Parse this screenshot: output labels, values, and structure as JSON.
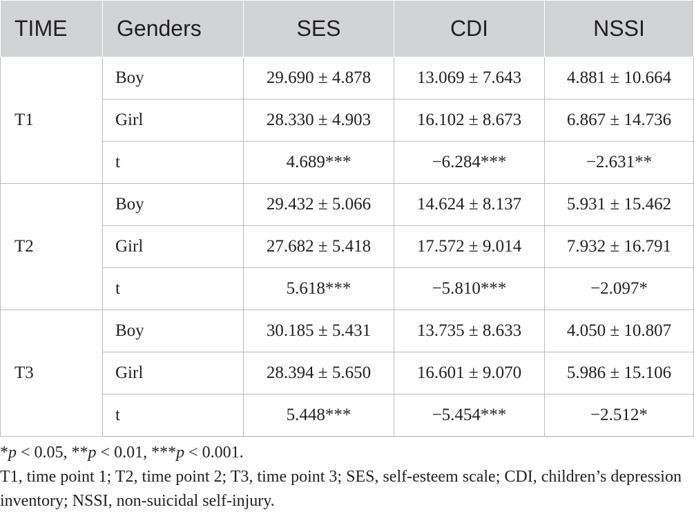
{
  "table": {
    "headers": [
      "TIME",
      "Genders",
      "SES",
      "CDI",
      "NSSI"
    ],
    "groups": [
      {
        "time": "T1",
        "rows": [
          {
            "gender": "Boy",
            "ses": "29.690 ± 4.878",
            "cdi": "13.069 ± 7.643",
            "nssi": "4.881 ± 10.664"
          },
          {
            "gender": "Girl",
            "ses": "28.330 ± 4.903",
            "cdi": "16.102 ± 8.673",
            "nssi": "6.867 ± 14.736"
          },
          {
            "gender": "t",
            "ses": "4.689***",
            "cdi": "−6.284***",
            "nssi": "−2.631**"
          }
        ]
      },
      {
        "time": "T2",
        "rows": [
          {
            "gender": "Boy",
            "ses": "29.432 ± 5.066",
            "cdi": "14.624 ± 8.137",
            "nssi": "5.931 ± 15.462"
          },
          {
            "gender": "Girl",
            "ses": "27.682 ± 5.418",
            "cdi": "17.572 ± 9.014",
            "nssi": "7.932 ± 16.791"
          },
          {
            "gender": "t",
            "ses": "5.618***",
            "cdi": "−5.810***",
            "nssi": "−2.097*"
          }
        ]
      },
      {
        "time": "T3",
        "rows": [
          {
            "gender": "Boy",
            "ses": "30.185 ± 5.431",
            "cdi": "13.735 ± 8.633",
            "nssi": "4.050 ± 10.807"
          },
          {
            "gender": "Girl",
            "ses": "28.394 ± 5.650",
            "cdi": "16.601 ± 9.070",
            "nssi": "5.986 ± 15.106"
          },
          {
            "gender": "t",
            "ses": "5.448***",
            "cdi": "−5.454***",
            "nssi": "−2.512*"
          }
        ]
      }
    ]
  },
  "footnotes": {
    "significance": [
      {
        "prefix": "*",
        "p": "p",
        "rest": " < 0.05, "
      },
      {
        "prefix": "**",
        "p": "p",
        "rest": " < 0.01, "
      },
      {
        "prefix": "***",
        "p": "p",
        "rest": " < 0.001."
      }
    ],
    "abbreviations": "T1, time point 1; T2, time point 2; T3, time point 3; SES, self-esteem scale; CDI, children’s depression inventory; NSSI, non-suicidal self-injury."
  },
  "colors": {
    "header_bg": "#d1d3d4",
    "text": "#231f20",
    "grid": "#b9bbbd"
  }
}
